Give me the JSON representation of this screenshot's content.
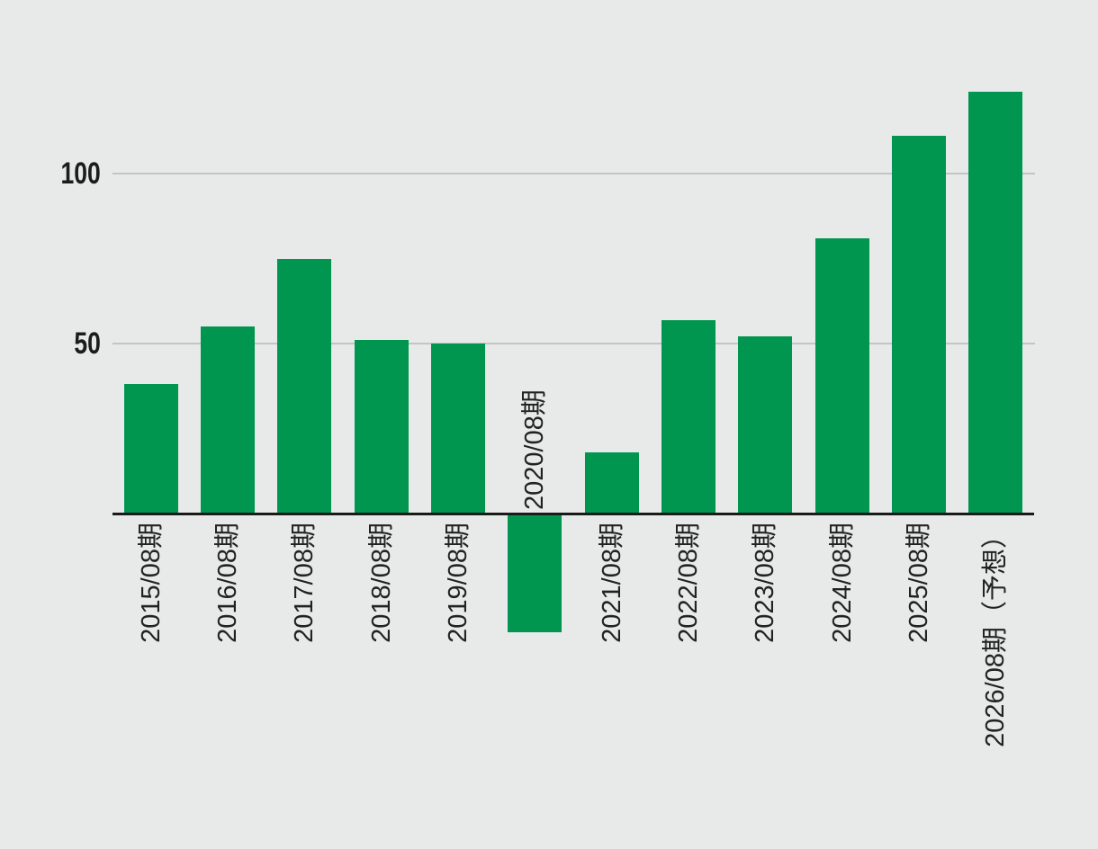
{
  "chart_data": {
    "type": "bar",
    "title": "",
    "xlabel": "",
    "ylabel": "",
    "categories": [
      "2015/08期",
      "2016/08期",
      "2017/08期",
      "2018/08期",
      "2019/08期",
      "2020/08期",
      "2021/08期",
      "2022/08期",
      "2023/08期",
      "2024/08期",
      "2025/08期",
      "2026/08期（予想）"
    ],
    "values": [
      38,
      55,
      75,
      51,
      50,
      -35,
      18,
      57,
      52,
      81,
      111,
      124
    ],
    "y_ticks": [
      50,
      100
    ],
    "ylim": [
      -40,
      135
    ],
    "grid": "horizontal-only",
    "legend": "none",
    "x_label_rotation_deg": -90,
    "negative_bar_label_position": "above-axis"
  },
  "colors": {
    "background": "#e7eae9",
    "bar": "#00964f",
    "axis_line": "#1a1a1a",
    "gridline": "#c1c5c3",
    "tick_text": "#1c1c1c",
    "label_text": "#222222"
  }
}
